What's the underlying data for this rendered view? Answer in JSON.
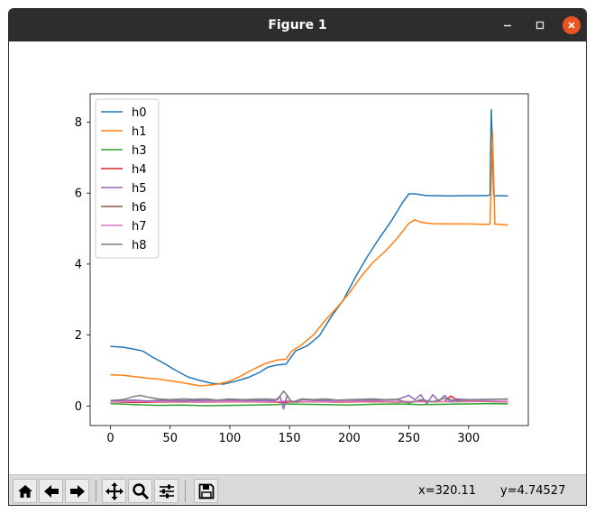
{
  "window": {
    "title": "Figure 1",
    "controls": {
      "minimize": "minimize-icon",
      "maximize": "maximize-icon",
      "close": "close-icon"
    }
  },
  "toolbar": {
    "buttons": [
      "home-icon",
      "back-arrow-icon",
      "forward-arrow-icon",
      "pan-icon",
      "zoom-icon",
      "subplots-icon",
      "save-icon"
    ],
    "x_readout": "x=320.11",
    "y_readout": "y=4.74527"
  },
  "chart_data": {
    "type": "line",
    "title": "",
    "xlabel": "",
    "ylabel": "",
    "xlim": [
      -17,
      350
    ],
    "ylim": [
      -0.55,
      8.8
    ],
    "xticks": [
      0,
      50,
      100,
      150,
      200,
      250,
      300
    ],
    "yticks": [
      0,
      2,
      4,
      6,
      8
    ],
    "xtick_labels": [
      "0",
      "50",
      "100",
      "150",
      "200",
      "250",
      "300"
    ],
    "ytick_labels": [
      "0",
      "2",
      "4",
      "6",
      "8"
    ],
    "grid": false,
    "legend": "upper left",
    "series": [
      {
        "name": "h0",
        "color": "#1f77b4",
        "x": [
          0,
          10,
          20,
          27,
          35,
          45,
          55,
          65,
          75,
          85,
          95,
          105,
          115,
          125,
          132,
          140,
          147,
          155,
          165,
          175,
          185,
          195,
          205,
          215,
          225,
          235,
          245,
          250,
          255,
          265,
          275,
          285,
          295,
          305,
          315,
          318,
          319,
          320,
          321,
          322,
          325,
          333
        ],
        "y": [
          1.68,
          1.66,
          1.6,
          1.55,
          1.38,
          1.2,
          1.0,
          0.82,
          0.72,
          0.64,
          0.62,
          0.7,
          0.8,
          0.95,
          1.1,
          1.16,
          1.18,
          1.55,
          1.7,
          1.98,
          2.52,
          2.98,
          3.62,
          4.2,
          4.72,
          5.2,
          5.75,
          5.98,
          5.98,
          5.93,
          5.93,
          5.92,
          5.93,
          5.93,
          5.93,
          5.95,
          8.35,
          7.3,
          5.95,
          5.92,
          5.93,
          5.92
        ]
      },
      {
        "name": "h1",
        "color": "#ff7f0e",
        "x": [
          0,
          10,
          20,
          30,
          40,
          50,
          60,
          70,
          75,
          80,
          85,
          90,
          100,
          110,
          120,
          130,
          140,
          147,
          152,
          160,
          170,
          180,
          190,
          200,
          210,
          220,
          230,
          240,
          250,
          255,
          260,
          270,
          280,
          290,
          300,
          310,
          316,
          318,
          320,
          321,
          322,
          325,
          333
        ],
        "y": [
          0.88,
          0.87,
          0.83,
          0.79,
          0.76,
          0.71,
          0.66,
          0.6,
          0.57,
          0.58,
          0.6,
          0.62,
          0.7,
          0.86,
          1.04,
          1.2,
          1.3,
          1.32,
          1.55,
          1.72,
          2.0,
          2.42,
          2.78,
          3.18,
          3.65,
          4.05,
          4.35,
          4.72,
          5.15,
          5.25,
          5.18,
          5.14,
          5.13,
          5.13,
          5.13,
          5.12,
          5.12,
          5.12,
          7.72,
          6.5,
          5.12,
          5.12,
          5.1
        ]
      },
      {
        "name": "h3",
        "color": "#2ca02c",
        "x": [
          0,
          20,
          40,
          60,
          80,
          100,
          120,
          140,
          147,
          160,
          180,
          200,
          220,
          240,
          260,
          280,
          300,
          320,
          333
        ],
        "y": [
          0.07,
          0.04,
          0.02,
          0.03,
          0.01,
          0.02,
          0.03,
          0.04,
          0.06,
          0.05,
          0.04,
          0.03,
          0.05,
          0.06,
          0.04,
          0.05,
          0.06,
          0.07,
          0.06
        ]
      },
      {
        "name": "h4",
        "color": "#d62728",
        "x": [
          0,
          20,
          40,
          60,
          80,
          100,
          120,
          135,
          145,
          155,
          170,
          190,
          210,
          230,
          250,
          260,
          270,
          280,
          285,
          290,
          300,
          320,
          333
        ],
        "y": [
          0.12,
          0.1,
          0.11,
          0.12,
          0.11,
          0.12,
          0.12,
          0.11,
          0.1,
          0.13,
          0.12,
          0.11,
          0.12,
          0.12,
          0.11,
          0.14,
          0.12,
          0.13,
          0.28,
          0.18,
          0.14,
          0.13,
          0.12
        ]
      },
      {
        "name": "h5",
        "color": "#9467bd",
        "x": [
          0,
          20,
          30,
          40,
          60,
          80,
          100,
          120,
          138,
          142,
          145,
          148,
          152,
          160,
          180,
          200,
          220,
          240,
          250,
          255,
          260,
          265,
          270,
          275,
          280,
          285,
          290,
          300,
          320,
          333
        ],
        "y": [
          0.15,
          0.17,
          0.14,
          0.16,
          0.15,
          0.16,
          0.17,
          0.16,
          0.15,
          0.28,
          -0.08,
          0.3,
          0.1,
          0.18,
          0.16,
          0.17,
          0.17,
          0.18,
          0.3,
          0.18,
          0.32,
          0.06,
          0.32,
          0.14,
          0.3,
          0.12,
          0.2,
          0.18,
          0.19,
          0.19
        ]
      },
      {
        "name": "h6",
        "color": "#8c564b",
        "x": [
          0,
          20,
          40,
          60,
          80,
          100,
          120,
          140,
          148,
          155,
          170,
          190,
          210,
          230,
          250,
          270,
          290,
          310,
          333
        ],
        "y": [
          0.13,
          0.12,
          0.14,
          0.13,
          0.12,
          0.13,
          0.12,
          0.12,
          0.14,
          0.11,
          0.13,
          0.12,
          0.14,
          0.13,
          0.12,
          0.13,
          0.12,
          0.13,
          0.12
        ]
      },
      {
        "name": "h7",
        "color": "#e377c2",
        "x": [
          0,
          20,
          40,
          60,
          80,
          100,
          120,
          140,
          148,
          160,
          180,
          200,
          220,
          240,
          260,
          280,
          300,
          320,
          333
        ],
        "y": [
          0.12,
          0.13,
          0.12,
          0.14,
          0.12,
          0.13,
          0.13,
          0.12,
          0.14,
          0.13,
          0.12,
          0.13,
          0.14,
          0.13,
          0.12,
          0.13,
          0.13,
          0.14,
          0.13
        ]
      },
      {
        "name": "h8",
        "color": "#7f7f7f",
        "x": [
          0,
          10,
          20,
          25,
          30,
          40,
          50,
          60,
          70,
          80,
          90,
          100,
          110,
          120,
          130,
          140,
          145,
          148,
          152,
          160,
          170,
          180,
          190,
          200,
          210,
          220,
          230,
          240,
          250,
          260,
          270,
          280,
          290,
          300,
          310,
          320,
          333
        ],
        "y": [
          0.16,
          0.18,
          0.27,
          0.3,
          0.26,
          0.2,
          0.18,
          0.2,
          0.19,
          0.2,
          0.17,
          0.2,
          0.18,
          0.19,
          0.2,
          0.18,
          0.42,
          0.3,
          0.1,
          0.2,
          0.18,
          0.2,
          0.17,
          0.18,
          0.19,
          0.2,
          0.18,
          0.19,
          0.08,
          0.18,
          0.12,
          0.22,
          0.14,
          0.18,
          0.17,
          0.19,
          0.2
        ]
      }
    ]
  }
}
